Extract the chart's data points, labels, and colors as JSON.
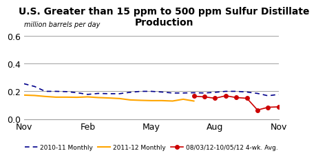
{
  "title": "U.S. Greater than 15 ppm to 500 ppm Sulfur Distillate\nProduction",
  "subtitle": "million barrels per day",
  "ylim": [
    0.0,
    0.65
  ],
  "yticks": [
    0.0,
    0.2,
    0.4,
    0.6
  ],
  "ytick_labels": [
    "0.0",
    "0.2",
    "0.4",
    "0.6"
  ],
  "xtick_labels": [
    "Nov",
    "Feb",
    "May",
    "Aug",
    "Nov"
  ],
  "x_positions": [
    0,
    3,
    6,
    9,
    12
  ],
  "blue_x": [
    0,
    0.5,
    1,
    1.5,
    2,
    2.5,
    3,
    3.5,
    4,
    4.5,
    5,
    5.5,
    6,
    6.5,
    7,
    7.5,
    8,
    8.5,
    9,
    9.5,
    10,
    10.5,
    11,
    11.5,
    12
  ],
  "blue_y": [
    0.255,
    0.235,
    0.2,
    0.2,
    0.198,
    0.19,
    0.178,
    0.185,
    0.183,
    0.183,
    0.193,
    0.2,
    0.2,
    0.195,
    0.188,
    0.188,
    0.19,
    0.188,
    0.193,
    0.2,
    0.2,
    0.195,
    0.185,
    0.168,
    0.178
  ],
  "orange_x": [
    0,
    0.5,
    1,
    1.5,
    2,
    2.5,
    3,
    3.5,
    4,
    4.5,
    5,
    5.5,
    6,
    6.5,
    7,
    7.5,
    8
  ],
  "orange_y": [
    0.173,
    0.17,
    0.163,
    0.158,
    0.158,
    0.157,
    0.16,
    0.155,
    0.152,
    0.148,
    0.138,
    0.135,
    0.133,
    0.133,
    0.13,
    0.143,
    0.13
  ],
  "red_x": [
    8,
    8.5,
    9,
    9.5,
    10,
    10.5,
    11,
    11.5,
    12
  ],
  "red_y": [
    0.165,
    0.16,
    0.15,
    0.168,
    0.155,
    0.15,
    0.065,
    0.085,
    0.088
  ],
  "blue_color": "#00008B",
  "orange_color": "#FFA500",
  "red_color": "#CC0000",
  "grid_color": "#A0A0A0",
  "bg_color": "#FFFFFF",
  "legend_labels": [
    "2010-11 Monthly",
    "2011-12 Monthly",
    "08/03/12-10/05/12 4-wk. Avg."
  ]
}
